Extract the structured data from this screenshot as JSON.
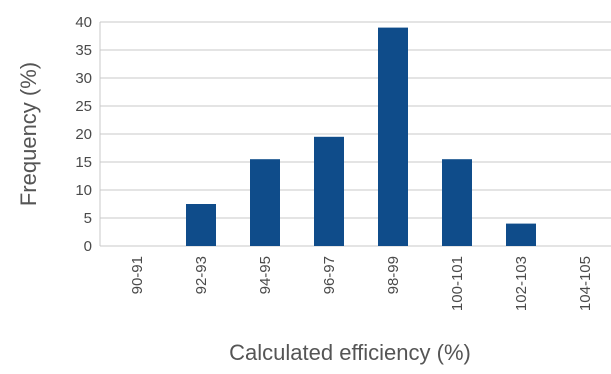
{
  "chart_data": {
    "type": "bar",
    "categories": [
      "90-91",
      "92-93",
      "94-95",
      "96-97",
      "98-99",
      "100-101",
      "102-103",
      "104-105"
    ],
    "values": [
      0,
      7.5,
      15.5,
      19.5,
      39,
      15.5,
      4,
      0
    ],
    "xlabel": "Calculated efficiency (%)",
    "ylabel": "Frequency (%)",
    "ylim": [
      0,
      40
    ],
    "yticks": [
      0,
      5,
      10,
      15,
      20,
      25,
      30,
      35,
      40
    ],
    "grid": true,
    "colors": {
      "bar": "#0f4c8a"
    }
  }
}
